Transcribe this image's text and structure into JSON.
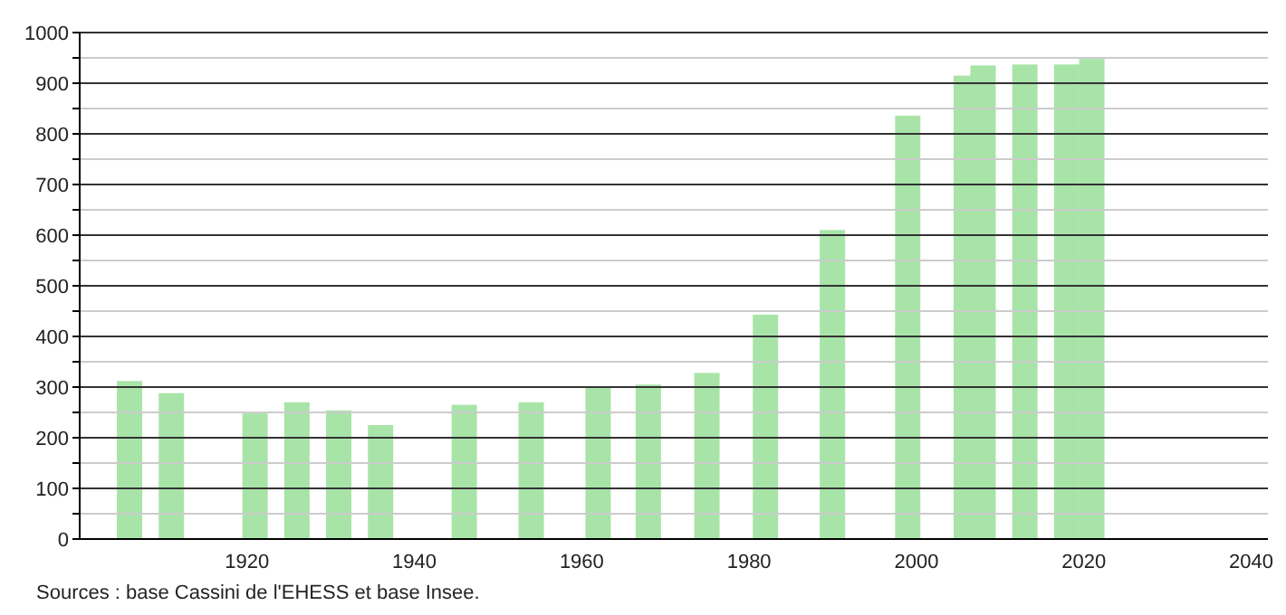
{
  "chart_data": {
    "type": "bar",
    "x": [
      1906,
      1911,
      1921,
      1926,
      1931,
      1936,
      1946,
      1954,
      1962,
      1968,
      1975,
      1982,
      1990,
      1999,
      2006,
      2008,
      2013,
      2018,
      2021
    ],
    "values": [
      312,
      288,
      248,
      270,
      254,
      225,
      265,
      270,
      300,
      305,
      328,
      443,
      610,
      836,
      915,
      935,
      937,
      937,
      948
    ],
    "color": "#a8e4a8",
    "xlim": [
      1900,
      2042
    ],
    "xticks": [
      1920,
      1940,
      1960,
      1980,
      2000,
      2020,
      2040
    ],
    "ylim": [
      0,
      1000
    ],
    "yticks": [
      0,
      {
        "value": 50,
        "label": null
      },
      100,
      {
        "value": 150,
        "label": null
      },
      200,
      {
        "value": 250,
        "label": null
      },
      300,
      {
        "value": 350,
        "label": null
      },
      400,
      {
        "value": 450,
        "label": null
      },
      500,
      {
        "value": 550,
        "label": null
      },
      600,
      {
        "value": 650,
        "label": null
      },
      700,
      {
        "value": 750,
        "label": null
      },
      800,
      {
        "value": 850,
        "label": null
      },
      900,
      {
        "value": 950,
        "label": null
      },
      1000
    ],
    "grid": "y",
    "annotations": [
      "Sources : base Cassini de l'EHESS et base Insee."
    ]
  }
}
